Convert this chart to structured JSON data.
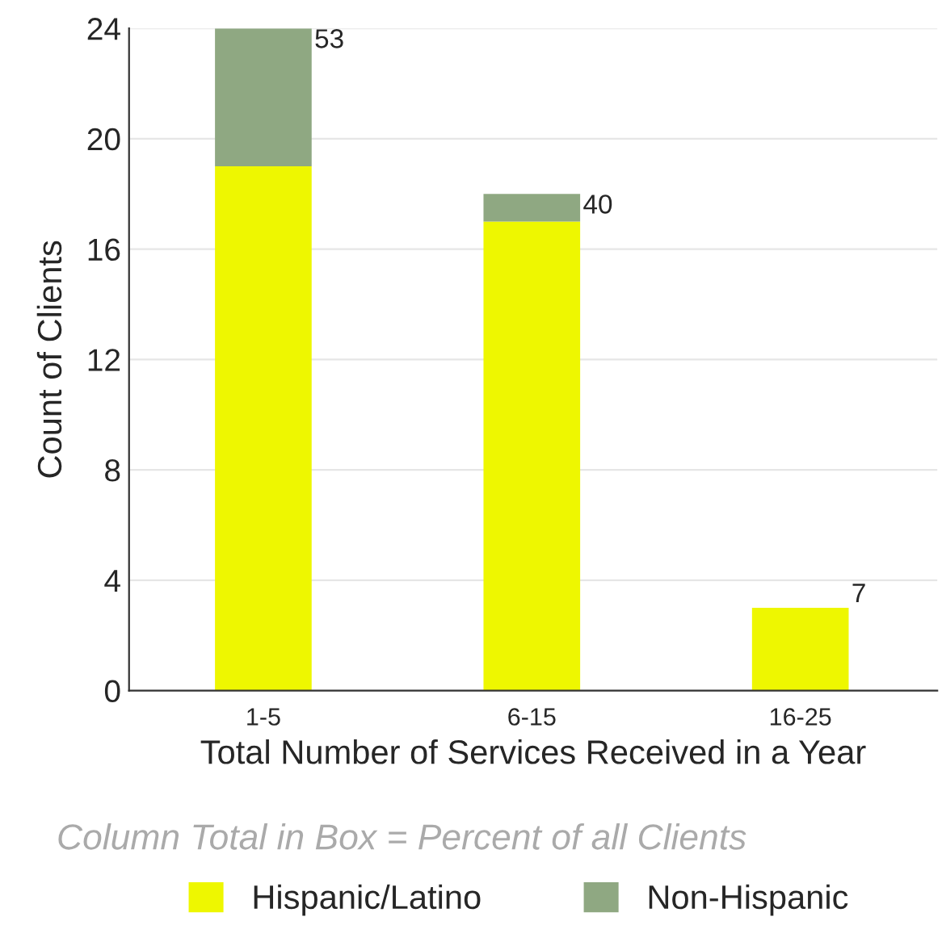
{
  "chart_data": {
    "type": "bar",
    "stacked": true,
    "xlabel": "Total Number of Services Received in a Year",
    "ylabel": "Count of Clients",
    "categories": [
      "1-5",
      "6-15",
      "16-25"
    ],
    "series": [
      {
        "name": "Hispanic/Latino",
        "color": "#eef700",
        "values": [
          19,
          17,
          3
        ]
      },
      {
        "name": "Non-Hispanic",
        "color": "#8fa882",
        "values": [
          5,
          1,
          0
        ]
      }
    ],
    "ylim": [
      0,
      24
    ],
    "yticks": [
      0,
      4,
      8,
      12,
      16,
      20,
      24
    ],
    "grid": "y",
    "legend": "bottom",
    "annotations": [
      "53",
      "40",
      "7",
      "Column Total in Box = Percent of all Clients"
    ]
  }
}
